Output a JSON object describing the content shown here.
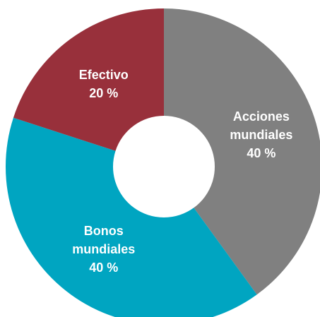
{
  "chart_data": {
    "type": "donut",
    "categories": [
      "Acciones mundiales",
      "Bonos mundiales",
      "Efectivo"
    ],
    "values": [
      40,
      40,
      20
    ],
    "value_labels": [
      "40 %",
      "40 %",
      "20 %"
    ],
    "colors": [
      "#808080",
      "#00a5c1",
      "#98303b"
    ]
  }
}
